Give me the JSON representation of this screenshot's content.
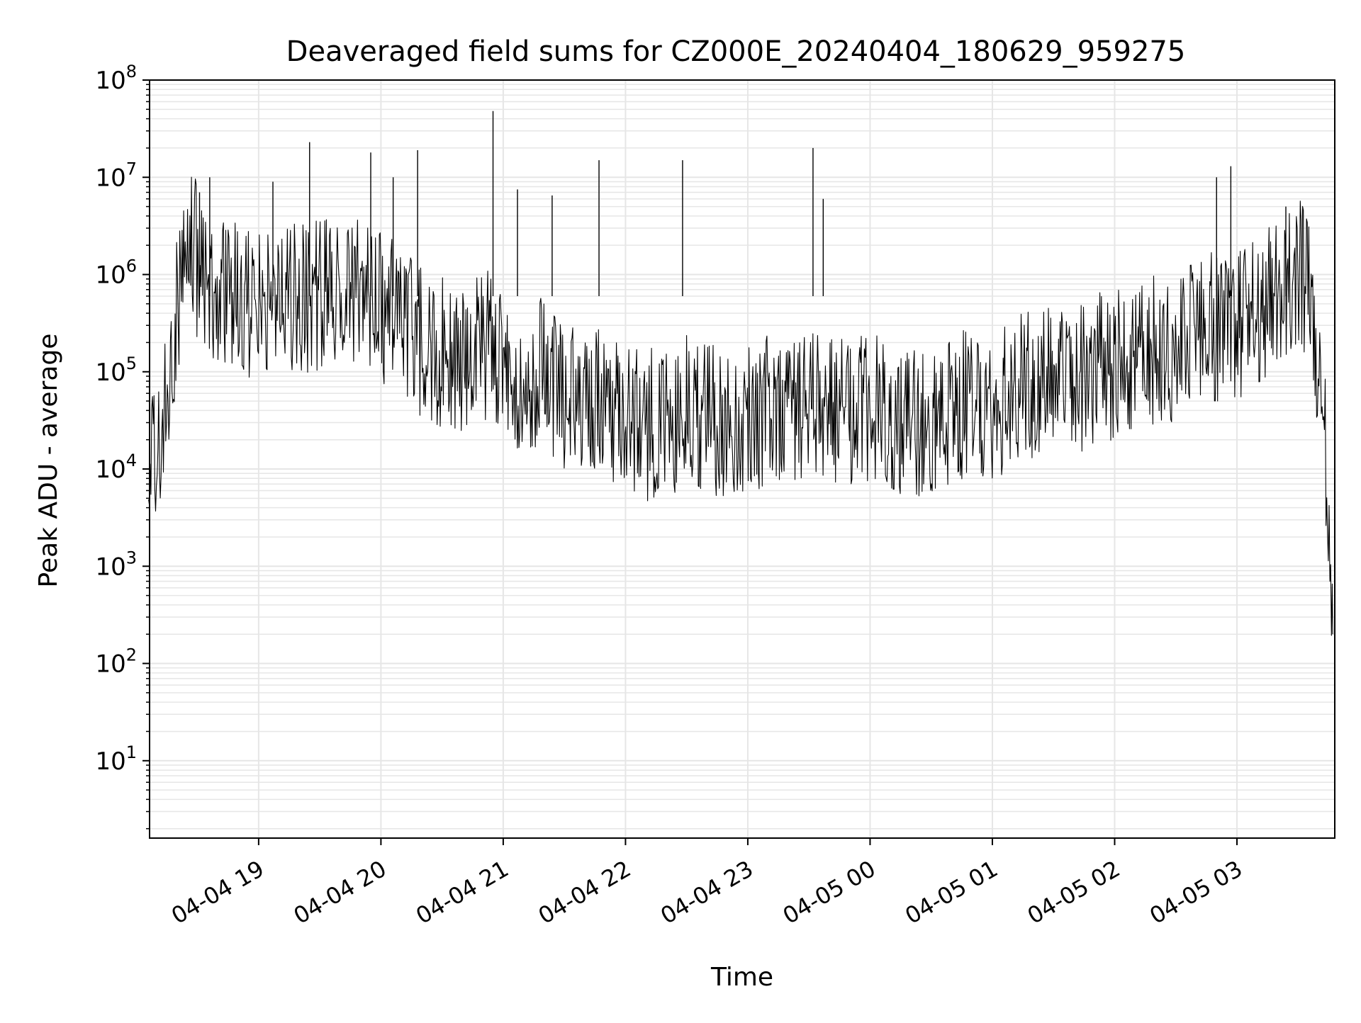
{
  "chart_data": {
    "type": "line",
    "title": "Deaveraged field sums for CZ000E_20240404_180629_959275",
    "xlabel": "Time",
    "ylabel": "Peak ADU - average",
    "y_scale": "log",
    "ylim": [
      1.6,
      100000000
    ],
    "xlim": [
      "2024-04-04 18:06:29",
      "2024-04-05 03:48:00"
    ],
    "grid": true,
    "line_color": "#000000",
    "grid_color": "#e6e6e6",
    "x_ticks": [
      {
        "value": "2024-04-04 19:00",
        "label": "04-04 19"
      },
      {
        "value": "2024-04-04 20:00",
        "label": "04-04 20"
      },
      {
        "value": "2024-04-04 21:00",
        "label": "04-04 21"
      },
      {
        "value": "2024-04-04 22:00",
        "label": "04-04 22"
      },
      {
        "value": "2024-04-04 23:00",
        "label": "04-04 23"
      },
      {
        "value": "2024-04-05 00:00",
        "label": "04-05 00"
      },
      {
        "value": "2024-04-05 01:00",
        "label": "04-05 01"
      },
      {
        "value": "2024-04-05 02:00",
        "label": "04-05 02"
      },
      {
        "value": "2024-04-05 03:00",
        "label": "04-05 03"
      }
    ],
    "y_ticks": [
      {
        "value": 10,
        "label": "10",
        "exp": "1"
      },
      {
        "value": 100,
        "label": "10",
        "exp": "2"
      },
      {
        "value": 1000,
        "label": "10",
        "exp": "3"
      },
      {
        "value": 10000,
        "label": "10",
        "exp": "4"
      },
      {
        "value": 100000,
        "label": "10",
        "exp": "5"
      },
      {
        "value": 1000000,
        "label": "10",
        "exp": "6"
      },
      {
        "value": 10000000,
        "label": "10",
        "exp": "7"
      },
      {
        "value": 100000000,
        "label": "10",
        "exp": "8"
      }
    ],
    "series": [
      {
        "x": [
          "2024-04-04 18:06",
          "2024-04-04 18:08",
          "2024-04-04 18:10",
          "2024-04-04 18:12",
          "2024-04-04 18:15",
          "2024-04-04 18:18",
          "2024-04-04 18:21",
          "2024-04-04 18:24",
          "2024-04-04 18:27",
          "2024-04-04 18:30",
          "2024-04-04 18:35",
          "2024-04-04 18:40",
          "2024-04-04 18:45",
          "2024-04-04 18:50",
          "2024-04-04 18:55",
          "2024-04-04 19:00",
          "2024-04-04 19:10",
          "2024-04-04 19:20",
          "2024-04-04 19:30",
          "2024-04-04 19:40",
          "2024-04-04 19:50",
          "2024-04-04 20:00",
          "2024-04-04 20:10",
          "2024-04-04 20:20",
          "2024-04-04 20:30",
          "2024-04-04 20:40",
          "2024-04-04 20:50",
          "2024-04-04 21:00",
          "2024-04-04 21:10",
          "2024-04-04 21:20",
          "2024-04-04 21:30",
          "2024-04-04 21:40",
          "2024-04-04 21:50",
          "2024-04-04 22:00",
          "2024-04-04 22:10",
          "2024-04-04 22:20",
          "2024-04-04 22:30",
          "2024-04-04 22:40",
          "2024-04-04 22:50",
          "2024-04-04 23:00",
          "2024-04-04 23:10",
          "2024-04-04 23:20",
          "2024-04-04 23:30",
          "2024-04-04 23:40",
          "2024-04-04 23:50",
          "2024-04-05 00:00",
          "2024-04-05 00:10",
          "2024-04-05 00:20",
          "2024-04-05 00:30",
          "2024-04-05 00:40",
          "2024-04-05 00:50",
          "2024-04-05 01:00",
          "2024-04-05 01:10",
          "2024-04-05 01:20",
          "2024-04-05 01:30",
          "2024-04-05 01:40",
          "2024-04-05 01:50",
          "2024-04-05 02:00",
          "2024-04-05 02:10",
          "2024-04-05 02:20",
          "2024-04-05 02:30",
          "2024-04-05 02:40",
          "2024-04-05 02:50",
          "2024-04-05 03:00",
          "2024-04-05 03:10",
          "2024-04-05 03:20",
          "2024-04-05 03:30",
          "2024-04-05 03:35",
          "2024-04-05 03:40",
          "2024-04-05 03:43",
          "2024-04-05 03:45",
          "2024-04-05 03:46",
          "2024-04-05 03:47"
        ],
        "values": [
          3000,
          20000,
          8000,
          30000,
          60000,
          200000,
          500000,
          900000,
          3500000,
          1200000,
          700000,
          800000,
          600000,
          700000,
          500000,
          600000,
          700000,
          500000,
          600000,
          800000,
          700000,
          500000,
          300000,
          200000,
          150000,
          120000,
          200000,
          150000,
          80000,
          100000,
          60000,
          40000,
          50000,
          40000,
          30000,
          25000,
          40000,
          35000,
          30000,
          35000,
          40000,
          50000,
          45000,
          40000,
          35000,
          40000,
          35000,
          30000,
          35000,
          40000,
          45000,
          50000,
          60000,
          70000,
          80000,
          90000,
          100000,
          120000,
          140000,
          160000,
          200000,
          250000,
          280000,
          300000,
          450000,
          700000,
          1200000,
          600000,
          100000,
          20000,
          5000,
          600,
          200
        ]
      }
    ],
    "spikes": [
      {
        "x": "2024-04-04 18:31",
        "value": 7000000
      },
      {
        "x": "2024-04-04 18:36",
        "value": 10000000
      },
      {
        "x": "2024-04-04 19:07",
        "value": 9000000
      },
      {
        "x": "2024-04-04 19:25",
        "value": 23000000
      },
      {
        "x": "2024-04-04 19:55",
        "value": 18000000
      },
      {
        "x": "2024-04-04 20:06",
        "value": 10000000
      },
      {
        "x": "2024-04-04 20:18",
        "value": 19000000
      },
      {
        "x": "2024-04-04 20:55",
        "value": 48000000
      },
      {
        "x": "2024-04-04 21:07",
        "value": 7500000
      },
      {
        "x": "2024-04-04 21:24",
        "value": 6500000
      },
      {
        "x": "2024-04-04 21:47",
        "value": 15000000
      },
      {
        "x": "2024-04-04 22:28",
        "value": 15000000
      },
      {
        "x": "2024-04-04 23:32",
        "value": 20000000
      },
      {
        "x": "2024-04-04 23:37",
        "value": 6000000
      },
      {
        "x": "2024-04-05 02:50",
        "value": 10000000
      },
      {
        "x": "2024-04-05 02:57",
        "value": 13000000
      },
      {
        "x": "2024-04-05 03:24",
        "value": 5000000
      }
    ]
  }
}
